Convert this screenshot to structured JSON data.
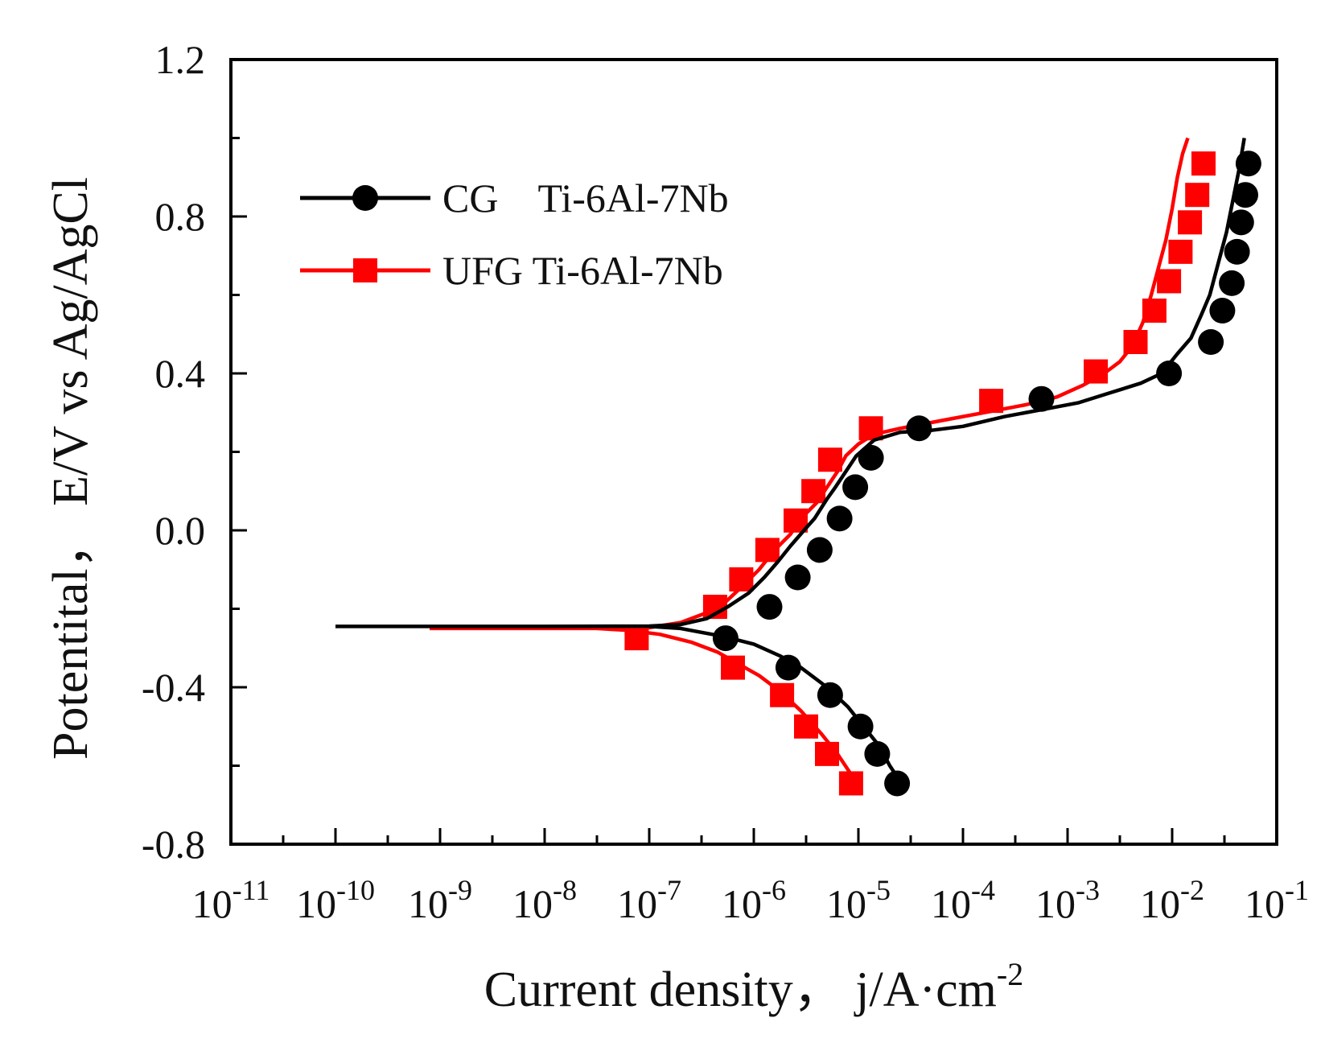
{
  "chart_data": {
    "type": "line",
    "title": "",
    "xlabel": "Current density， j/A·cm",
    "xlabel_superscript": "-2",
    "ylabel": "Potentital， E/V vs Ag/AgCl",
    "x_scale": "log",
    "xlim_exponent": [
      -11,
      -1
    ],
    "ylim": [
      -0.8,
      1.2
    ],
    "x_ticks": [
      {
        "base": "10",
        "exp": "-11"
      },
      {
        "base": "10",
        "exp": "-10"
      },
      {
        "base": "10",
        "exp": "-9"
      },
      {
        "base": "10",
        "exp": "-8"
      },
      {
        "base": "10",
        "exp": "-7"
      },
      {
        "base": "10",
        "exp": "-6"
      },
      {
        "base": "10",
        "exp": "-5"
      },
      {
        "base": "10",
        "exp": "-4"
      },
      {
        "base": "10",
        "exp": "-3"
      },
      {
        "base": "10",
        "exp": "-2"
      },
      {
        "base": "10",
        "exp": "-1"
      }
    ],
    "y_ticks": [
      "-0.8",
      "-0.4",
      "0.0",
      "0.4",
      "0.8",
      "1.2"
    ],
    "legend_position": "top-left",
    "series": [
      {
        "name": "CG    Ti-6Al-7Nb",
        "color": "#000000",
        "marker": "circle",
        "curve": [
          [
            -10.0,
            -0.245
          ],
          [
            -9.0,
            -0.245
          ],
          [
            -8.0,
            -0.245
          ],
          [
            -7.0,
            -0.244
          ],
          [
            -6.7,
            -0.24
          ],
          [
            -6.45,
            -0.225
          ],
          [
            -6.25,
            -0.195
          ],
          [
            -6.05,
            -0.16
          ],
          [
            -5.9,
            -0.12
          ],
          [
            -5.77,
            -0.08
          ],
          [
            -5.65,
            -0.04
          ],
          [
            -5.52,
            0.0
          ],
          [
            -5.42,
            0.03
          ],
          [
            -5.3,
            0.08
          ],
          [
            -5.22,
            0.11
          ],
          [
            -5.12,
            0.15
          ],
          [
            -5.02,
            0.19
          ],
          [
            -4.85,
            0.23
          ],
          [
            -4.6,
            0.25
          ],
          [
            -4.3,
            0.255
          ],
          [
            -4.0,
            0.265
          ],
          [
            -3.6,
            0.29
          ],
          [
            -3.2,
            0.31
          ],
          [
            -2.9,
            0.325
          ],
          [
            -2.6,
            0.35
          ],
          [
            -2.3,
            0.375
          ],
          [
            -2.1,
            0.4
          ],
          [
            -1.95,
            0.45
          ],
          [
            -1.82,
            0.49
          ],
          [
            -1.72,
            0.55
          ],
          [
            -1.64,
            0.6
          ],
          [
            -1.56,
            0.68
          ],
          [
            -1.48,
            0.76
          ],
          [
            -1.42,
            0.84
          ],
          [
            -1.36,
            0.92
          ],
          [
            -1.31,
            1.0
          ]
        ],
        "cathodic_curve": [
          [
            -7.0,
            -0.245
          ],
          [
            -6.7,
            -0.25
          ],
          [
            -6.5,
            -0.26
          ],
          [
            -6.3,
            -0.27
          ],
          [
            -6.0,
            -0.29
          ],
          [
            -5.75,
            -0.32
          ],
          [
            -5.55,
            -0.35
          ],
          [
            -5.3,
            -0.4
          ],
          [
            -5.1,
            -0.45
          ],
          [
            -4.95,
            -0.5
          ],
          [
            -4.8,
            -0.55
          ],
          [
            -4.7,
            -0.6
          ],
          [
            -4.6,
            -0.64
          ]
        ],
        "markers": [
          [
            -5.85,
            -0.195
          ],
          [
            -5.58,
            -0.12
          ],
          [
            -5.37,
            -0.05
          ],
          [
            -5.18,
            0.03
          ],
          [
            -5.03,
            0.11
          ],
          [
            -4.88,
            0.185
          ],
          [
            -4.42,
            0.26
          ],
          [
            -3.25,
            0.335
          ],
          [
            -2.03,
            0.4
          ],
          [
            -1.63,
            0.48
          ],
          [
            -1.52,
            0.56
          ],
          [
            -1.43,
            0.63
          ],
          [
            -1.38,
            0.71
          ],
          [
            -1.34,
            0.785
          ],
          [
            -1.3,
            0.855
          ],
          [
            -1.27,
            0.935
          ],
          [
            -6.27,
            -0.275
          ],
          [
            -5.67,
            -0.35
          ],
          [
            -5.27,
            -0.42
          ],
          [
            -4.98,
            -0.5
          ],
          [
            -4.82,
            -0.57
          ],
          [
            -4.63,
            -0.645
          ]
        ]
      },
      {
        "name": "UFG Ti-6Al-7Nb",
        "color": "#ff0000",
        "marker": "square",
        "curve": [
          [
            -9.1,
            -0.25
          ],
          [
            -8.0,
            -0.25
          ],
          [
            -7.5,
            -0.25
          ],
          [
            -7.0,
            -0.248
          ],
          [
            -6.7,
            -0.235
          ],
          [
            -6.45,
            -0.21
          ],
          [
            -6.3,
            -0.19
          ],
          [
            -6.1,
            -0.14
          ],
          [
            -5.95,
            -0.1
          ],
          [
            -5.8,
            -0.05
          ],
          [
            -5.65,
            -0.01
          ],
          [
            -5.55,
            0.03
          ],
          [
            -5.4,
            0.07
          ],
          [
            -5.3,
            0.11
          ],
          [
            -5.2,
            0.15
          ],
          [
            -5.12,
            0.19
          ],
          [
            -5.0,
            0.22
          ],
          [
            -4.85,
            0.245
          ],
          [
            -4.6,
            0.26
          ],
          [
            -4.2,
            0.28
          ],
          [
            -3.8,
            0.3
          ],
          [
            -3.4,
            0.32
          ],
          [
            -3.1,
            0.34
          ],
          [
            -2.85,
            0.37
          ],
          [
            -2.65,
            0.4
          ],
          [
            -2.5,
            0.43
          ],
          [
            -2.38,
            0.47
          ],
          [
            -2.28,
            0.53
          ],
          [
            -2.2,
            0.6
          ],
          [
            -2.12,
            0.68
          ],
          [
            -2.06,
            0.74
          ],
          [
            -2.0,
            0.82
          ],
          [
            -1.95,
            0.9
          ],
          [
            -1.9,
            0.96
          ],
          [
            -1.85,
            1.0
          ]
        ],
        "cathodic_curve": [
          [
            -7.5,
            -0.25
          ],
          [
            -7.2,
            -0.255
          ],
          [
            -6.9,
            -0.265
          ],
          [
            -6.6,
            -0.285
          ],
          [
            -6.35,
            -0.31
          ],
          [
            -6.15,
            -0.34
          ],
          [
            -5.95,
            -0.37
          ],
          [
            -5.75,
            -0.41
          ],
          [
            -5.55,
            -0.46
          ],
          [
            -5.35,
            -0.52
          ],
          [
            -5.2,
            -0.57
          ],
          [
            -5.1,
            -0.61
          ],
          [
            -5.0,
            -0.65
          ]
        ],
        "markers": [
          [
            -6.37,
            -0.195
          ],
          [
            -6.12,
            -0.125
          ],
          [
            -5.87,
            -0.05
          ],
          [
            -5.6,
            0.025
          ],
          [
            -5.43,
            0.1
          ],
          [
            -5.27,
            0.18
          ],
          [
            -4.88,
            0.26
          ],
          [
            -3.73,
            0.33
          ],
          [
            -2.73,
            0.405
          ],
          [
            -2.35,
            0.48
          ],
          [
            -2.17,
            0.56
          ],
          [
            -2.03,
            0.635
          ],
          [
            -1.92,
            0.71
          ],
          [
            -1.83,
            0.785
          ],
          [
            -1.76,
            0.855
          ],
          [
            -1.7,
            0.935
          ],
          [
            -7.12,
            -0.275
          ],
          [
            -6.2,
            -0.35
          ],
          [
            -5.73,
            -0.42
          ],
          [
            -5.5,
            -0.5
          ],
          [
            -5.3,
            -0.57
          ],
          [
            -5.07,
            -0.645
          ]
        ]
      }
    ]
  }
}
